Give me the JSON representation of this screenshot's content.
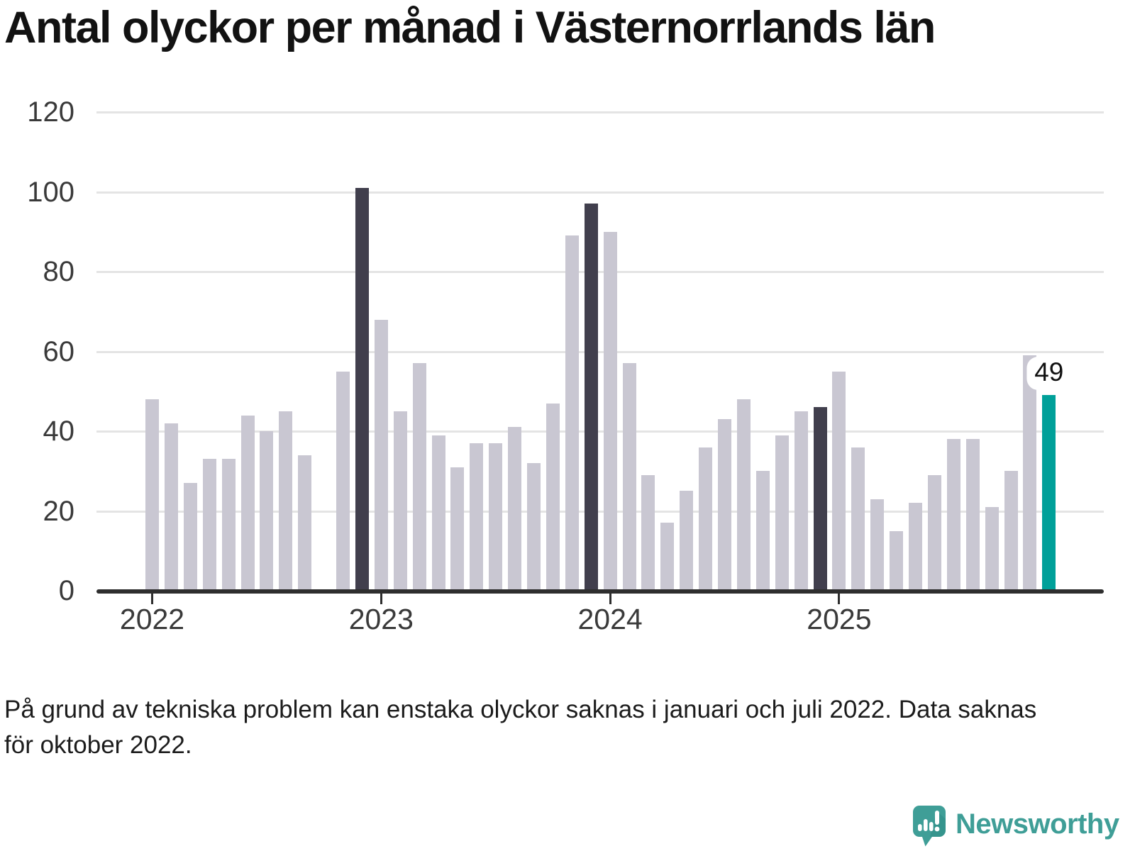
{
  "title": "Antal olyckor per månad i Västernorrlands län",
  "footnote": "På grund av tekniska problem kan enstaka olyckor saknas i januari och juli 2022. Data saknas för oktober 2022.",
  "branding": {
    "name": "Newsworthy",
    "logo_icon": "newsworthy-speech-bubble-bar-chart-icon",
    "color": "#3f9e97"
  },
  "chart_data": {
    "type": "bar",
    "title": "Antal olyckor per månad i Västernorrlands län",
    "xlabel": "",
    "ylabel": "",
    "ylim": [
      0,
      120
    ],
    "y_ticks": [
      0,
      20,
      40,
      60,
      80,
      100,
      120
    ],
    "grid": "horizontal",
    "legend": "none",
    "missing_months": [
      "2022-10"
    ],
    "palette": {
      "base": "#c9c7d2",
      "dark": "#413f4d",
      "accent": "#00a099"
    },
    "x_ticks": [
      {
        "label": "2022",
        "month": "2022-01"
      },
      {
        "label": "2023",
        "month": "2023-01"
      },
      {
        "label": "2024",
        "month": "2024-01"
      },
      {
        "label": "2025",
        "month": "2025-01"
      }
    ],
    "annotation": {
      "month": "2025-12",
      "text": "49"
    },
    "bars": [
      {
        "month": "2022-01",
        "value": 48,
        "color": "base"
      },
      {
        "month": "2022-02",
        "value": 42,
        "color": "base"
      },
      {
        "month": "2022-03",
        "value": 27,
        "color": "base"
      },
      {
        "month": "2022-04",
        "value": 33,
        "color": "base"
      },
      {
        "month": "2022-05",
        "value": 33,
        "color": "base"
      },
      {
        "month": "2022-06",
        "value": 44,
        "color": "base"
      },
      {
        "month": "2022-07",
        "value": 40,
        "color": "base"
      },
      {
        "month": "2022-08",
        "value": 45,
        "color": "base"
      },
      {
        "month": "2022-09",
        "value": 34,
        "color": "base"
      },
      {
        "month": "2022-10",
        "value": null,
        "color": "base"
      },
      {
        "month": "2022-11",
        "value": 55,
        "color": "base"
      },
      {
        "month": "2022-12",
        "value": 101,
        "color": "dark"
      },
      {
        "month": "2023-01",
        "value": 68,
        "color": "base"
      },
      {
        "month": "2023-02",
        "value": 45,
        "color": "base"
      },
      {
        "month": "2023-03",
        "value": 57,
        "color": "base"
      },
      {
        "month": "2023-04",
        "value": 39,
        "color": "base"
      },
      {
        "month": "2023-05",
        "value": 31,
        "color": "base"
      },
      {
        "month": "2023-06",
        "value": 37,
        "color": "base"
      },
      {
        "month": "2023-07",
        "value": 37,
        "color": "base"
      },
      {
        "month": "2023-08",
        "value": 41,
        "color": "base"
      },
      {
        "month": "2023-09",
        "value": 32,
        "color": "base"
      },
      {
        "month": "2023-10",
        "value": 47,
        "color": "base"
      },
      {
        "month": "2023-11",
        "value": 89,
        "color": "base"
      },
      {
        "month": "2023-12",
        "value": 97,
        "color": "dark"
      },
      {
        "month": "2024-01",
        "value": 90,
        "color": "base"
      },
      {
        "month": "2024-02",
        "value": 57,
        "color": "base"
      },
      {
        "month": "2024-03",
        "value": 29,
        "color": "base"
      },
      {
        "month": "2024-04",
        "value": 17,
        "color": "base"
      },
      {
        "month": "2024-05",
        "value": 25,
        "color": "base"
      },
      {
        "month": "2024-06",
        "value": 36,
        "color": "base"
      },
      {
        "month": "2024-07",
        "value": 43,
        "color": "base"
      },
      {
        "month": "2024-08",
        "value": 48,
        "color": "base"
      },
      {
        "month": "2024-09",
        "value": 30,
        "color": "base"
      },
      {
        "month": "2024-10",
        "value": 39,
        "color": "base"
      },
      {
        "month": "2024-11",
        "value": 45,
        "color": "base"
      },
      {
        "month": "2024-12",
        "value": 46,
        "color": "dark"
      },
      {
        "month": "2025-01",
        "value": 55,
        "color": "base"
      },
      {
        "month": "2025-02",
        "value": 36,
        "color": "base"
      },
      {
        "month": "2025-03",
        "value": 23,
        "color": "base"
      },
      {
        "month": "2025-04",
        "value": 15,
        "color": "base"
      },
      {
        "month": "2025-05",
        "value": 22,
        "color": "base"
      },
      {
        "month": "2025-06",
        "value": 29,
        "color": "base"
      },
      {
        "month": "2025-07",
        "value": 38,
        "color": "base"
      },
      {
        "month": "2025-08",
        "value": 38,
        "color": "base"
      },
      {
        "month": "2025-09",
        "value": 21,
        "color": "base"
      },
      {
        "month": "2025-10",
        "value": 30,
        "color": "base"
      },
      {
        "month": "2025-11",
        "value": 59,
        "color": "base"
      },
      {
        "month": "2025-12",
        "value": 49,
        "color": "accent"
      }
    ]
  }
}
